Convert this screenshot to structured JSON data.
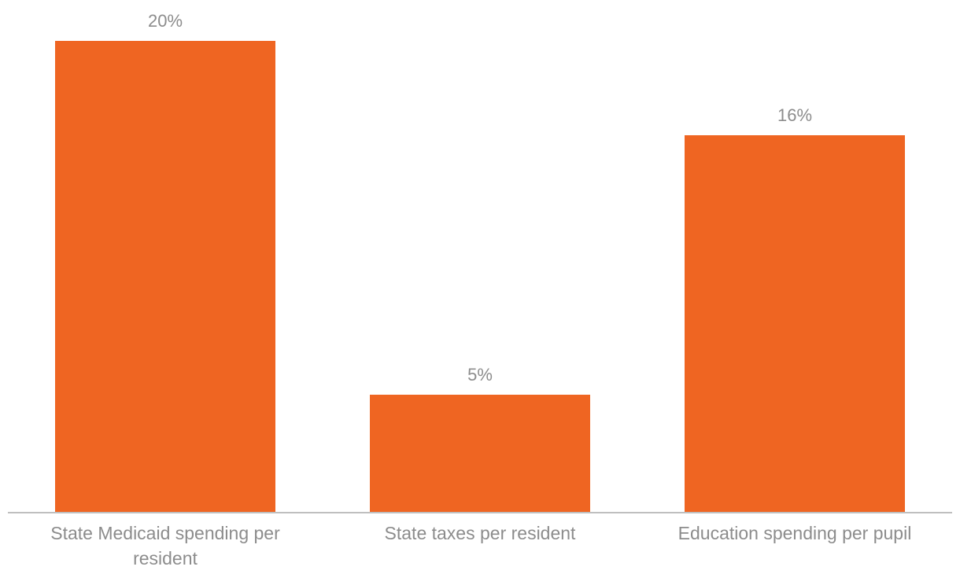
{
  "chart_data": {
    "type": "bar",
    "categories": [
      "State Medicaid spending per resident",
      "State taxes per resident",
      "Education spending per pupil"
    ],
    "category_label_lines": [
      [
        "State Medicaid spending per",
        "resident"
      ],
      [
        "State taxes per resident"
      ],
      [
        "Education spending per pupil"
      ]
    ],
    "values": [
      20,
      5,
      16
    ],
    "value_labels": [
      "20%",
      "5%",
      "16%"
    ],
    "unit": "%",
    "ylim": [
      0,
      20
    ],
    "grid": false,
    "legend": "none",
    "colors": {
      "bar": "#EF6522",
      "axis": "#bfbfbf",
      "label_text": "#8c8c8c"
    }
  }
}
